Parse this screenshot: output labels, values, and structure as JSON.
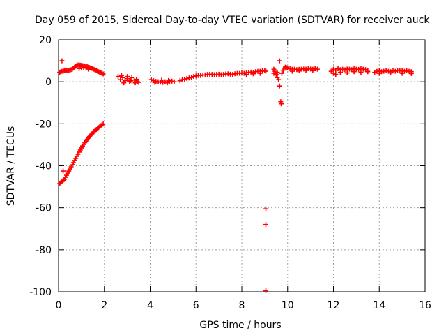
{
  "chart_data": {
    "type": "scatter",
    "title": "Day 059 of 2015, Sidereal Day-to-day VTEC variation (SDTVAR) for receiver auck",
    "xlabel": "GPS time / hours",
    "ylabel": "SDTVAR / TECUs",
    "xlim": [
      0,
      16
    ],
    "ylim": [
      -100,
      20
    ],
    "xticks": [
      0,
      2,
      4,
      6,
      8,
      10,
      12,
      14,
      16
    ],
    "yticks": [
      -100,
      -80,
      -60,
      -40,
      -20,
      0,
      20
    ],
    "grid": true,
    "marker": "+",
    "color": "#ff0000",
    "series": [
      {
        "name": "SDTVAR",
        "points": [
          [
            0.05,
            -48.5
          ],
          [
            0.1,
            -48.0
          ],
          [
            0.15,
            -47.5
          ],
          [
            0.2,
            -47.0
          ],
          [
            0.25,
            -46.5
          ],
          [
            0.3,
            -45.5
          ],
          [
            0.35,
            -44.5
          ],
          [
            0.4,
            -43.5
          ],
          [
            0.45,
            -42.5
          ],
          [
            0.5,
            -41.5
          ],
          [
            0.55,
            -40.5
          ],
          [
            0.6,
            -39.5
          ],
          [
            0.65,
            -38.5
          ],
          [
            0.7,
            -37.5
          ],
          [
            0.75,
            -36.5
          ],
          [
            0.8,
            -35.5
          ],
          [
            0.85,
            -34.5
          ],
          [
            0.9,
            -33.5
          ],
          [
            0.95,
            -32.5
          ],
          [
            1.0,
            -31.5
          ],
          [
            1.05,
            -30.6
          ],
          [
            1.1,
            -29.8
          ],
          [
            1.15,
            -29.0
          ],
          [
            1.2,
            -28.2
          ],
          [
            1.25,
            -27.5
          ],
          [
            1.3,
            -26.8
          ],
          [
            1.35,
            -26.1
          ],
          [
            1.4,
            -25.5
          ],
          [
            1.45,
            -24.9
          ],
          [
            1.5,
            -24.3
          ],
          [
            1.55,
            -23.7
          ],
          [
            1.6,
            -23.2
          ],
          [
            1.65,
            -22.7
          ],
          [
            1.7,
            -22.2
          ],
          [
            1.75,
            -21.8
          ],
          [
            1.8,
            -21.3
          ],
          [
            1.85,
            -20.9
          ],
          [
            1.9,
            -20.5
          ],
          [
            1.95,
            -20.1
          ],
          [
            0.2,
            -42.5
          ],
          [
            0.15,
            10.0
          ],
          [
            0.05,
            4.5
          ],
          [
            0.1,
            4.8
          ],
          [
            0.15,
            5.0
          ],
          [
            0.2,
            5.0
          ],
          [
            0.25,
            5.2
          ],
          [
            0.3,
            5.3
          ],
          [
            0.35,
            5.2
          ],
          [
            0.4,
            5.4
          ],
          [
            0.45,
            5.5
          ],
          [
            0.5,
            5.6
          ],
          [
            0.55,
            5.8
          ],
          [
            0.6,
            6.0
          ],
          [
            0.65,
            6.5
          ],
          [
            0.7,
            7.0
          ],
          [
            0.75,
            7.4
          ],
          [
            0.8,
            7.7
          ],
          [
            0.85,
            8.0
          ],
          [
            0.9,
            8.0
          ],
          [
            0.95,
            7.9
          ],
          [
            1.0,
            7.8
          ],
          [
            1.05,
            7.7
          ],
          [
            1.1,
            7.6
          ],
          [
            1.15,
            7.5
          ],
          [
            1.2,
            7.3
          ],
          [
            1.25,
            7.2
          ],
          [
            1.3,
            7.0
          ],
          [
            1.35,
            6.8
          ],
          [
            1.4,
            6.6
          ],
          [
            1.45,
            6.4
          ],
          [
            1.5,
            6.2
          ],
          [
            1.55,
            5.9
          ],
          [
            1.6,
            5.6
          ],
          [
            1.65,
            5.3
          ],
          [
            1.7,
            5.0
          ],
          [
            1.75,
            4.8
          ],
          [
            1.8,
            4.5
          ],
          [
            1.85,
            4.2
          ],
          [
            1.9,
            4.0
          ],
          [
            1.95,
            3.7
          ],
          [
            0.9,
            6.3
          ],
          [
            1.0,
            6.5
          ],
          [
            1.1,
            6.8
          ],
          [
            1.2,
            6.5
          ],
          [
            1.3,
            6.0
          ],
          [
            2.6,
            2.5
          ],
          [
            2.7,
            1.0
          ],
          [
            2.8,
            2.0
          ],
          [
            2.9,
            0.5
          ],
          [
            3.0,
            1.5
          ],
          [
            3.1,
            0.0
          ],
          [
            3.2,
            2.0
          ],
          [
            3.3,
            0.8
          ],
          [
            3.4,
            1.2
          ],
          [
            2.75,
            3.0
          ],
          [
            2.85,
            -0.5
          ],
          [
            3.0,
            2.5
          ],
          [
            3.15,
            0.5
          ],
          [
            3.35,
            -0.5
          ],
          [
            3.45,
            0.0
          ],
          [
            3.5,
            -0.3
          ],
          [
            4.05,
            1.0
          ],
          [
            4.15,
            0.5
          ],
          [
            4.25,
            0.2
          ],
          [
            4.35,
            0.0
          ],
          [
            4.45,
            -0.2
          ],
          [
            4.55,
            -0.3
          ],
          [
            4.65,
            0.0
          ],
          [
            4.75,
            -0.5
          ],
          [
            4.85,
            0.2
          ],
          [
            4.95,
            0.3
          ],
          [
            5.05,
            0.0
          ],
          [
            4.2,
            -0.3
          ],
          [
            4.5,
            0.8
          ],
          [
            4.8,
            0.6
          ],
          [
            5.3,
            0.5
          ],
          [
            5.4,
            1.0
          ],
          [
            5.5,
            1.2
          ],
          [
            5.6,
            1.5
          ],
          [
            5.7,
            1.8
          ],
          [
            5.8,
            2.0
          ],
          [
            5.9,
            2.5
          ],
          [
            6.0,
            2.8
          ],
          [
            6.1,
            3.0
          ],
          [
            6.2,
            3.0
          ],
          [
            6.3,
            3.2
          ],
          [
            6.4,
            3.3
          ],
          [
            6.5,
            3.5
          ],
          [
            6.6,
            3.6
          ],
          [
            6.7,
            3.5
          ],
          [
            6.8,
            3.4
          ],
          [
            6.9,
            3.5
          ],
          [
            7.0,
            3.6
          ],
          [
            7.1,
            3.4
          ],
          [
            7.2,
            3.5
          ],
          [
            7.3,
            3.7
          ],
          [
            7.4,
            3.8
          ],
          [
            7.5,
            3.6
          ],
          [
            7.6,
            3.5
          ],
          [
            7.7,
            3.8
          ],
          [
            7.8,
            4.0
          ],
          [
            7.9,
            4.0
          ],
          [
            8.0,
            4.2
          ],
          [
            8.1,
            4.0
          ],
          [
            8.2,
            4.3
          ],
          [
            8.3,
            4.5
          ],
          [
            8.4,
            4.6
          ],
          [
            8.5,
            4.5
          ],
          [
            8.6,
            4.8
          ],
          [
            8.7,
            5.0
          ],
          [
            8.8,
            5.0
          ],
          [
            8.9,
            5.3
          ],
          [
            9.0,
            5.5
          ],
          [
            9.05,
            5.0
          ],
          [
            8.2,
            3.5
          ],
          [
            8.5,
            3.8
          ],
          [
            8.8,
            4.0
          ],
          [
            9.05,
            -60.5
          ],
          [
            9.05,
            -68.0
          ],
          [
            9.05,
            -99.5
          ],
          [
            9.4,
            6.0
          ],
          [
            9.45,
            5.0
          ],
          [
            9.5,
            3.5
          ],
          [
            9.55,
            2.0
          ],
          [
            9.6,
            1.0
          ],
          [
            9.65,
            -2.0
          ],
          [
            9.55,
            4.5
          ],
          [
            9.4,
            4.0
          ],
          [
            9.65,
            10.0
          ],
          [
            9.7,
            -9.5
          ],
          [
            9.72,
            -10.5
          ],
          [
            9.75,
            4.0
          ],
          [
            9.8,
            5.5
          ],
          [
            9.85,
            6.5
          ],
          [
            9.9,
            7.0
          ],
          [
            9.95,
            6.8
          ],
          [
            10.0,
            6.5
          ],
          [
            10.1,
            6.3
          ],
          [
            10.2,
            6.0
          ],
          [
            10.3,
            6.0
          ],
          [
            10.4,
            5.8
          ],
          [
            10.5,
            5.9
          ],
          [
            10.6,
            6.0
          ],
          [
            10.7,
            6.1
          ],
          [
            10.8,
            6.0
          ],
          [
            10.9,
            6.2
          ],
          [
            11.0,
            6.1
          ],
          [
            11.1,
            6.0
          ],
          [
            11.2,
            6.2
          ],
          [
            11.3,
            6.0
          ],
          [
            10.2,
            5.0
          ],
          [
            10.5,
            5.2
          ],
          [
            10.8,
            5.4
          ],
          [
            11.1,
            5.3
          ],
          [
            11.9,
            5.0
          ],
          [
            12.0,
            6.0
          ],
          [
            12.1,
            5.5
          ],
          [
            12.2,
            6.2
          ],
          [
            12.3,
            5.8
          ],
          [
            12.4,
            6.0
          ],
          [
            12.5,
            5.7
          ],
          [
            12.6,
            6.1
          ],
          [
            12.7,
            6.0
          ],
          [
            12.8,
            5.8
          ],
          [
            12.9,
            6.3
          ],
          [
            13.0,
            6.0
          ],
          [
            13.1,
            5.9
          ],
          [
            13.2,
            6.2
          ],
          [
            13.3,
            6.0
          ],
          [
            13.4,
            5.8
          ],
          [
            13.5,
            5.5
          ],
          [
            12.0,
            4.0
          ],
          [
            12.3,
            4.5
          ],
          [
            12.6,
            4.2
          ],
          [
            12.9,
            4.8
          ],
          [
            13.2,
            4.5
          ],
          [
            13.5,
            4.8
          ],
          [
            12.1,
            3.5
          ],
          [
            13.8,
            4.5
          ],
          [
            13.9,
            5.0
          ],
          [
            14.0,
            5.2
          ],
          [
            14.1,
            4.8
          ],
          [
            14.2,
            5.0
          ],
          [
            14.3,
            5.3
          ],
          [
            14.4,
            5.0
          ],
          [
            14.5,
            4.8
          ],
          [
            14.6,
            5.2
          ],
          [
            14.7,
            5.0
          ],
          [
            14.8,
            5.3
          ],
          [
            14.9,
            5.5
          ],
          [
            15.0,
            5.2
          ],
          [
            15.1,
            5.0
          ],
          [
            15.2,
            5.3
          ],
          [
            15.3,
            5.0
          ],
          [
            15.4,
            4.8
          ],
          [
            14.0,
            4.0
          ],
          [
            14.5,
            4.2
          ],
          [
            15.0,
            4.0
          ],
          [
            15.4,
            3.9
          ]
        ]
      }
    ]
  }
}
